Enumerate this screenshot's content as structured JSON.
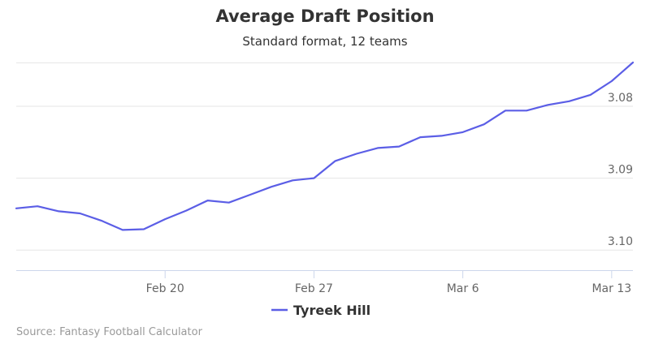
{
  "chart_data": {
    "type": "line",
    "title": "Average Draft Position",
    "subtitle": "Standard format, 12 teams",
    "xlabel": "",
    "ylabel": "",
    "x": [
      "Feb 13",
      "Feb 14",
      "Feb 15",
      "Feb 16",
      "Feb 17",
      "Feb 18",
      "Feb 19",
      "Feb 20",
      "Feb 21",
      "Feb 22",
      "Feb 23",
      "Feb 24",
      "Feb 25",
      "Feb 26",
      "Feb 27",
      "Feb 28",
      "Mar 1",
      "Mar 2",
      "Mar 3",
      "Mar 4",
      "Mar 5",
      "Mar 6",
      "Mar 7",
      "Mar 8",
      "Mar 9",
      "Mar 10",
      "Mar 11",
      "Mar 12",
      "Mar 13",
      "Mar 14"
    ],
    "x_ticks": [
      "Feb 20",
      "Feb 27",
      "Mar 6",
      "Mar 13"
    ],
    "y_ticks": [
      "3.08",
      "3.09",
      "3.10"
    ],
    "y_range": [
      3.1028,
      3.0739
    ],
    "y_reversed": true,
    "grid": true,
    "legend_position": "bottom",
    "series": [
      {
        "name": "Tyreek Hill",
        "color": "#5b5ee6",
        "values": [
          3.0942,
          3.0939,
          3.0946,
          3.0949,
          3.0959,
          3.0972,
          3.0971,
          3.0957,
          3.0945,
          3.0931,
          3.0934,
          3.0923,
          3.0912,
          3.0903,
          3.09,
          3.0876,
          3.0866,
          3.0858,
          3.0856,
          3.0843,
          3.0841,
          3.0836,
          3.0825,
          3.0806,
          3.0806,
          3.0798,
          3.0793,
          3.0784,
          3.0765,
          3.0739
        ]
      }
    ]
  },
  "source": "Source: Fantasy Football Calculator"
}
